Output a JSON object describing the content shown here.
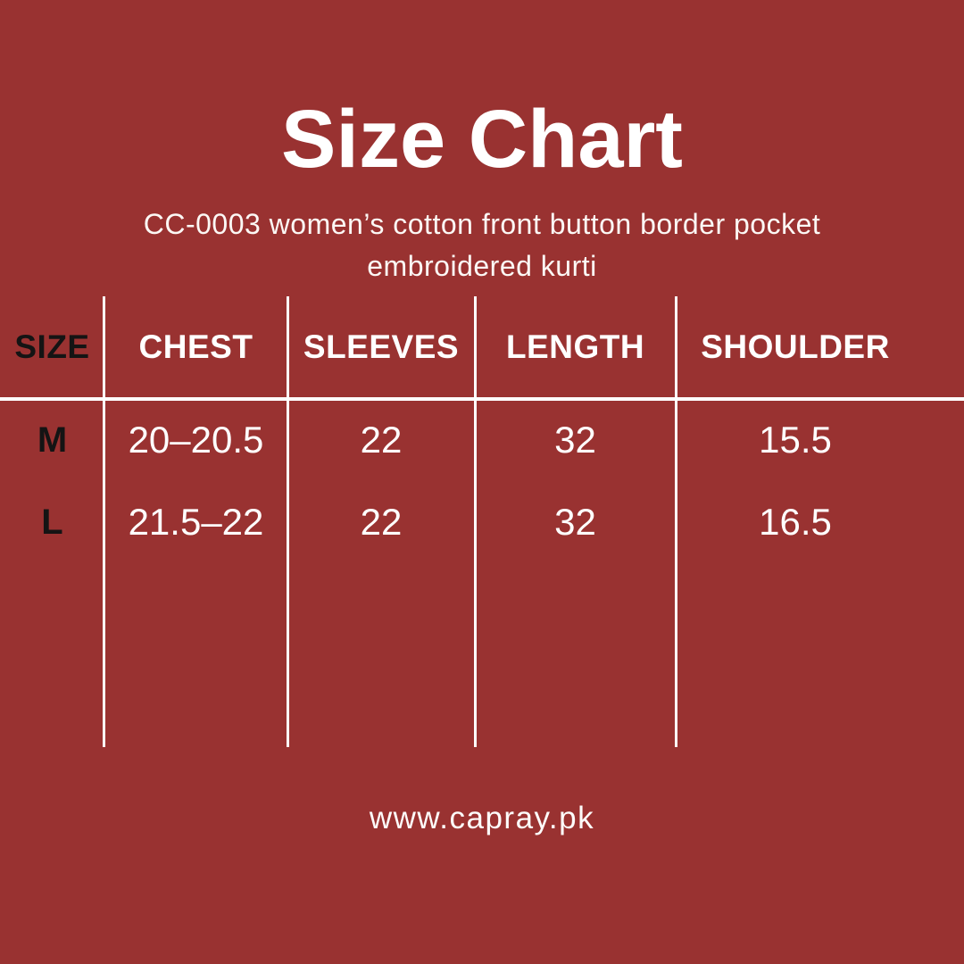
{
  "page": {
    "title": "Size Chart",
    "subtitle_line1": "CC-0003 women’s cotton front button border pocket",
    "subtitle_line2": "embroidered kurti",
    "website": "www.capray.pk"
  },
  "colors": {
    "background": "#993231",
    "text_primary": "#FFFFFF",
    "text_dark": "#141414",
    "divider": "#FFFFFF"
  },
  "chart_data": {
    "type": "table",
    "title": "Size Chart",
    "columns": [
      "SIZE",
      "CHEST",
      "SLEEVES",
      "LENGTH",
      "SHOULDER"
    ],
    "rows": [
      [
        "M",
        "20–20.5",
        "22",
        "32",
        "15.5"
      ],
      [
        "L",
        "21.5–22",
        "22",
        "32",
        "16.5"
      ]
    ]
  }
}
